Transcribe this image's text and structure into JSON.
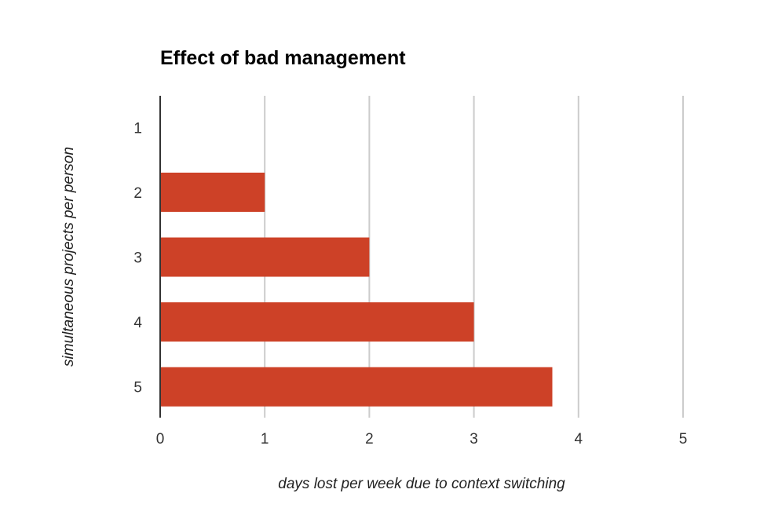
{
  "chart_data": {
    "type": "bar",
    "orientation": "horizontal",
    "title": "Effect of bad management",
    "xlabel": "days lost per week due to context switching",
    "ylabel": "simultaneous projects per person",
    "categories": [
      "1",
      "2",
      "3",
      "4",
      "5"
    ],
    "values": [
      0,
      1,
      2,
      3,
      3.75
    ],
    "xlim": [
      0,
      5
    ],
    "xticks": [
      "0",
      "1",
      "2",
      "3",
      "4",
      "5"
    ],
    "grid": true,
    "bar_color": "#cd4127"
  }
}
